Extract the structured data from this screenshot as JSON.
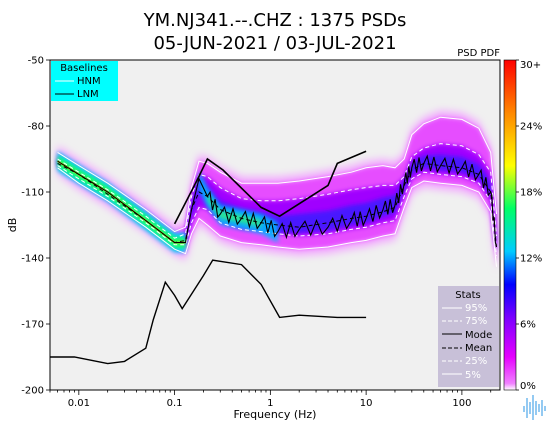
{
  "chart_data": {
    "type": "heatmap",
    "title": "YM.NJ341.--.CHZ : 1375 PSDs",
    "subtitle": "05-JUN-2021 / 03-JUL-2021",
    "corner_label": "PSD PDF",
    "xlabel": "Frequency (Hz)",
    "ylabel": "dB",
    "x_scale": "log",
    "xlim": [
      0.005,
      250
    ],
    "ylim": [
      -200,
      -50
    ],
    "x_ticks": [
      {
        "value": 0.01,
        "label": "0.01"
      },
      {
        "value": 0.1,
        "label": "0.1"
      },
      {
        "value": 1,
        "label": "1"
      },
      {
        "value": 10,
        "label": "10"
      },
      {
        "value": 100,
        "label": "100"
      }
    ],
    "y_ticks": [
      {
        "value": -50,
        "label": "-50"
      },
      {
        "value": -80,
        "label": "-80"
      },
      {
        "value": -110,
        "label": "-110"
      },
      {
        "value": -140,
        "label": "-140"
      },
      {
        "value": -170,
        "label": "-170"
      },
      {
        "value": -200,
        "label": "-200"
      }
    ],
    "colorbar": {
      "colors": [
        "#ffffff",
        "#e600ff",
        "#7a00ff",
        "#0000ff",
        "#00ccff",
        "#00ff66",
        "#ffff00",
        "#ff8800",
        "#ff0000"
      ],
      "ticks": [
        {
          "value": 0,
          "label": "0%"
        },
        {
          "value": 6,
          "label": "6%"
        },
        {
          "value": 12,
          "label": "12%"
        },
        {
          "value": 18,
          "label": "18%"
        },
        {
          "value": 24,
          "label": "24%"
        },
        {
          "value": 30,
          "label": "30+"
        }
      ],
      "range": [
        0,
        30
      ]
    },
    "baselines_legend": {
      "title": "Baselines",
      "entries": [
        "HNM",
        "LNM"
      ],
      "background": "#00ffff"
    },
    "stats_legend": {
      "title": "Stats",
      "entries": [
        "95%",
        "75%",
        "Mode",
        "Mean",
        "25%",
        "5%"
      ],
      "background": "#c8c0d8"
    },
    "nhnm": {
      "x": [
        0.1,
        0.17,
        0.22,
        0.32,
        0.8,
        1.25,
        4.0,
        5.0,
        10.0
      ],
      "y": [
        -124.5,
        -105,
        -95,
        -100,
        -117,
        -121,
        -107,
        -97,
        -91.5
      ]
    },
    "nlnm": {
      "x": [
        0.005,
        0.009,
        0.02,
        0.03,
        0.05,
        0.06,
        0.08,
        0.1,
        0.12,
        0.2,
        0.25,
        0.5,
        0.8,
        1.25,
        2.0,
        5.0,
        10.0
      ],
      "y": [
        -185,
        -185,
        -188,
        -187,
        -181,
        -168,
        -151,
        -157,
        -163,
        -148,
        -141,
        -143,
        -152,
        -167,
        -166,
        -167,
        -167
      ]
    },
    "stats_freqs": [
      0.006,
      0.01,
      0.02,
      0.05,
      0.1,
      0.13,
      0.15,
      0.18,
      0.22,
      0.3,
      0.5,
      0.8,
      1.2,
      2.0,
      4.0,
      7.0,
      10.0,
      15.0,
      20.0,
      25.0,
      30.0,
      40.0,
      60.0,
      100.0,
      150.0,
      200.0,
      230.0
    ],
    "stats": {
      "p95": [
        -92,
        -98,
        -106,
        -118,
        -128,
        -126,
        -108,
        -96,
        -97,
        -101,
        -106,
        -106,
        -106,
        -105,
        -103,
        -101,
        -99,
        -98,
        -99,
        -95,
        -84,
        -79,
        -76,
        -77,
        -81,
        -92,
        -120
      ],
      "p75": [
        -95,
        -101,
        -109,
        -121,
        -131,
        -129,
        -112,
        -102,
        -103,
        -108,
        -113,
        -114,
        -114,
        -113,
        -111,
        -109,
        -108,
        -107,
        -107,
        -103,
        -94,
        -90,
        -88,
        -89,
        -93,
        -101,
        -130
      ],
      "mode": [
        -96,
        -102,
        -110,
        -123,
        -133,
        -133,
        -118,
        -104,
        -112,
        -120,
        -122,
        -124,
        -128,
        -127,
        -126,
        -123,
        -122,
        -118,
        -116,
        -106,
        -99,
        -97,
        -98,
        -99,
        -102,
        -110,
        -135
      ],
      "mean": [
        -97,
        -102,
        -111,
        -123,
        -133,
        -132,
        -118,
        -110,
        -112,
        -118,
        -122,
        -124,
        -125,
        -126,
        -124,
        -122,
        -121,
        -119,
        -117,
        -107,
        -100,
        -97,
        -98,
        -99,
        -102,
        -110,
        -135
      ],
      "p25": [
        -98,
        -104,
        -112,
        -124,
        -134,
        -134,
        -124,
        -117,
        -118,
        -124,
        -127,
        -128,
        -129,
        -130,
        -129,
        -127,
        -126,
        -124,
        -123,
        -112,
        -104,
        -101,
        -102,
        -103,
        -106,
        -114,
        -139
      ],
      "p5": [
        -99,
        -106,
        -114,
        -126,
        -136,
        -138,
        -129,
        -122,
        -125,
        -130,
        -133,
        -134,
        -135,
        -136,
        -135,
        -133,
        -132,
        -130,
        -129,
        -117,
        -108,
        -105,
        -106,
        -107,
        -110,
        -119,
        -144
      ]
    }
  }
}
